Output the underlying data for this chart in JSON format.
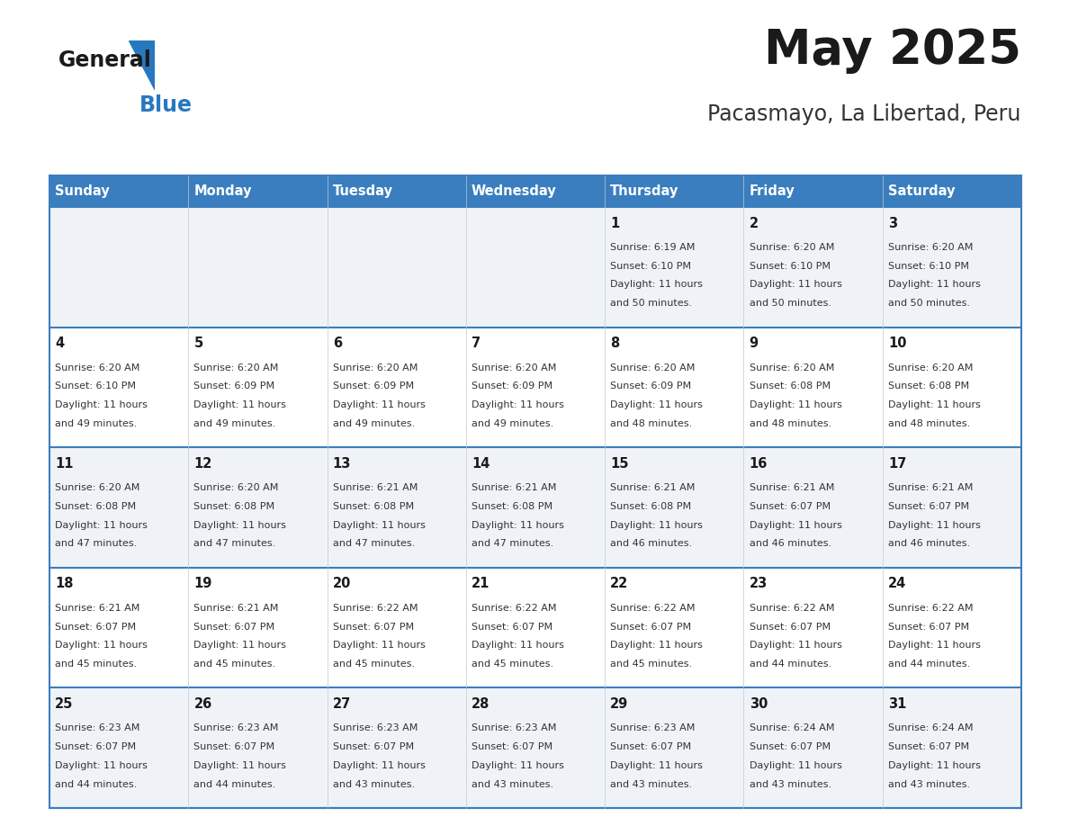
{
  "title": "May 2025",
  "subtitle": "Pacasmayo, La Libertad, Peru",
  "days_of_week": [
    "Sunday",
    "Monday",
    "Tuesday",
    "Wednesday",
    "Thursday",
    "Friday",
    "Saturday"
  ],
  "header_bg": "#3a7ebf",
  "header_text": "#ffffff",
  "row_bg_odd": "#eff3f8",
  "row_bg_even": "#ffffff",
  "cell_border": "#3a7ebf",
  "day_num_color": "#1a1a1a",
  "info_color": "#333333",
  "title_color": "#1a1a1a",
  "subtitle_color": "#333333",
  "calendar_data": [
    [
      null,
      null,
      null,
      null,
      {
        "day": 1,
        "sunrise": "6:19 AM",
        "sunset": "6:10 PM",
        "daylight": "11 hours and 50 minutes."
      },
      {
        "day": 2,
        "sunrise": "6:20 AM",
        "sunset": "6:10 PM",
        "daylight": "11 hours and 50 minutes."
      },
      {
        "day": 3,
        "sunrise": "6:20 AM",
        "sunset": "6:10 PM",
        "daylight": "11 hours and 50 minutes."
      }
    ],
    [
      {
        "day": 4,
        "sunrise": "6:20 AM",
        "sunset": "6:10 PM",
        "daylight": "11 hours and 49 minutes."
      },
      {
        "day": 5,
        "sunrise": "6:20 AM",
        "sunset": "6:09 PM",
        "daylight": "11 hours and 49 minutes."
      },
      {
        "day": 6,
        "sunrise": "6:20 AM",
        "sunset": "6:09 PM",
        "daylight": "11 hours and 49 minutes."
      },
      {
        "day": 7,
        "sunrise": "6:20 AM",
        "sunset": "6:09 PM",
        "daylight": "11 hours and 49 minutes."
      },
      {
        "day": 8,
        "sunrise": "6:20 AM",
        "sunset": "6:09 PM",
        "daylight": "11 hours and 48 minutes."
      },
      {
        "day": 9,
        "sunrise": "6:20 AM",
        "sunset": "6:08 PM",
        "daylight": "11 hours and 48 minutes."
      },
      {
        "day": 10,
        "sunrise": "6:20 AM",
        "sunset": "6:08 PM",
        "daylight": "11 hours and 48 minutes."
      }
    ],
    [
      {
        "day": 11,
        "sunrise": "6:20 AM",
        "sunset": "6:08 PM",
        "daylight": "11 hours and 47 minutes."
      },
      {
        "day": 12,
        "sunrise": "6:20 AM",
        "sunset": "6:08 PM",
        "daylight": "11 hours and 47 minutes."
      },
      {
        "day": 13,
        "sunrise": "6:21 AM",
        "sunset": "6:08 PM",
        "daylight": "11 hours and 47 minutes."
      },
      {
        "day": 14,
        "sunrise": "6:21 AM",
        "sunset": "6:08 PM",
        "daylight": "11 hours and 47 minutes."
      },
      {
        "day": 15,
        "sunrise": "6:21 AM",
        "sunset": "6:08 PM",
        "daylight": "11 hours and 46 minutes."
      },
      {
        "day": 16,
        "sunrise": "6:21 AM",
        "sunset": "6:07 PM",
        "daylight": "11 hours and 46 minutes."
      },
      {
        "day": 17,
        "sunrise": "6:21 AM",
        "sunset": "6:07 PM",
        "daylight": "11 hours and 46 minutes."
      }
    ],
    [
      {
        "day": 18,
        "sunrise": "6:21 AM",
        "sunset": "6:07 PM",
        "daylight": "11 hours and 45 minutes."
      },
      {
        "day": 19,
        "sunrise": "6:21 AM",
        "sunset": "6:07 PM",
        "daylight": "11 hours and 45 minutes."
      },
      {
        "day": 20,
        "sunrise": "6:22 AM",
        "sunset": "6:07 PM",
        "daylight": "11 hours and 45 minutes."
      },
      {
        "day": 21,
        "sunrise": "6:22 AM",
        "sunset": "6:07 PM",
        "daylight": "11 hours and 45 minutes."
      },
      {
        "day": 22,
        "sunrise": "6:22 AM",
        "sunset": "6:07 PM",
        "daylight": "11 hours and 45 minutes."
      },
      {
        "day": 23,
        "sunrise": "6:22 AM",
        "sunset": "6:07 PM",
        "daylight": "11 hours and 44 minutes."
      },
      {
        "day": 24,
        "sunrise": "6:22 AM",
        "sunset": "6:07 PM",
        "daylight": "11 hours and 44 minutes."
      }
    ],
    [
      {
        "day": 25,
        "sunrise": "6:23 AM",
        "sunset": "6:07 PM",
        "daylight": "11 hours and 44 minutes."
      },
      {
        "day": 26,
        "sunrise": "6:23 AM",
        "sunset": "6:07 PM",
        "daylight": "11 hours and 44 minutes."
      },
      {
        "day": 27,
        "sunrise": "6:23 AM",
        "sunset": "6:07 PM",
        "daylight": "11 hours and 43 minutes."
      },
      {
        "day": 28,
        "sunrise": "6:23 AM",
        "sunset": "6:07 PM",
        "daylight": "11 hours and 43 minutes."
      },
      {
        "day": 29,
        "sunrise": "6:23 AM",
        "sunset": "6:07 PM",
        "daylight": "11 hours and 43 minutes."
      },
      {
        "day": 30,
        "sunrise": "6:24 AM",
        "sunset": "6:07 PM",
        "daylight": "11 hours and 43 minutes."
      },
      {
        "day": 31,
        "sunrise": "6:24 AM",
        "sunset": "6:07 PM",
        "daylight": "11 hours and 43 minutes."
      }
    ]
  ]
}
